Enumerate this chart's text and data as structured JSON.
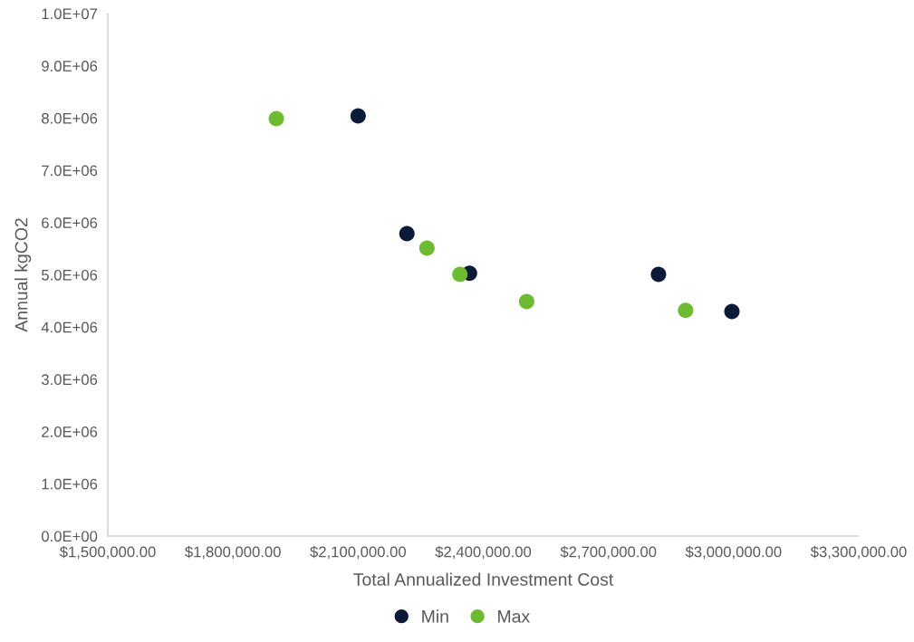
{
  "chart_data": {
    "type": "scatter",
    "xlabel": "Total Annualized Investment Cost",
    "ylabel": "Annual kgCO2",
    "series": [
      {
        "name": "Min",
        "color": "#0b1a36",
        "x": [
          2100000,
          2217000,
          2367000,
          2820000,
          2996000
        ],
        "values": [
          8040000,
          5790000,
          5030000,
          5010000,
          4300000
        ]
      },
      {
        "name": "Max",
        "color": "#6dbb2f",
        "x": [
          1904000,
          2265000,
          2344000,
          2504000,
          2885000
        ],
        "values": [
          7990000,
          5510000,
          5010000,
          4490000,
          4320000
        ]
      }
    ],
    "xlim": [
      1500000,
      3300000
    ],
    "xticks": [
      {
        "value": 1500000,
        "label": "$1,500,000.00"
      },
      {
        "value": 1800000,
        "label": "$1,800,000.00"
      },
      {
        "value": 2100000,
        "label": "$2,100,000.00"
      },
      {
        "value": 2400000,
        "label": "$2,400,000.00"
      },
      {
        "value": 2700000,
        "label": "$2,700,000.00"
      },
      {
        "value": 3000000,
        "label": "$3,000,000.00"
      },
      {
        "value": 3300000,
        "label": "$3,300,000.00"
      }
    ],
    "ylim": [
      0,
      10000000
    ],
    "yticks": [
      {
        "value": 0,
        "label": "0.0E+00"
      },
      {
        "value": 1000000,
        "label": "1.0E+06"
      },
      {
        "value": 2000000,
        "label": "2.0E+06"
      },
      {
        "value": 3000000,
        "label": "3.0E+06"
      },
      {
        "value": 4000000,
        "label": "4.0E+06"
      },
      {
        "value": 5000000,
        "label": "5.0E+06"
      },
      {
        "value": 6000000,
        "label": "6.0E+06"
      },
      {
        "value": 7000000,
        "label": "7.0E+06"
      },
      {
        "value": 8000000,
        "label": "8.0E+06"
      },
      {
        "value": 9000000,
        "label": "9.0E+06"
      },
      {
        "value": 10000000,
        "label": "1.0E+07"
      }
    ],
    "marker": "circle",
    "grid": false,
    "legend": "bottom"
  }
}
